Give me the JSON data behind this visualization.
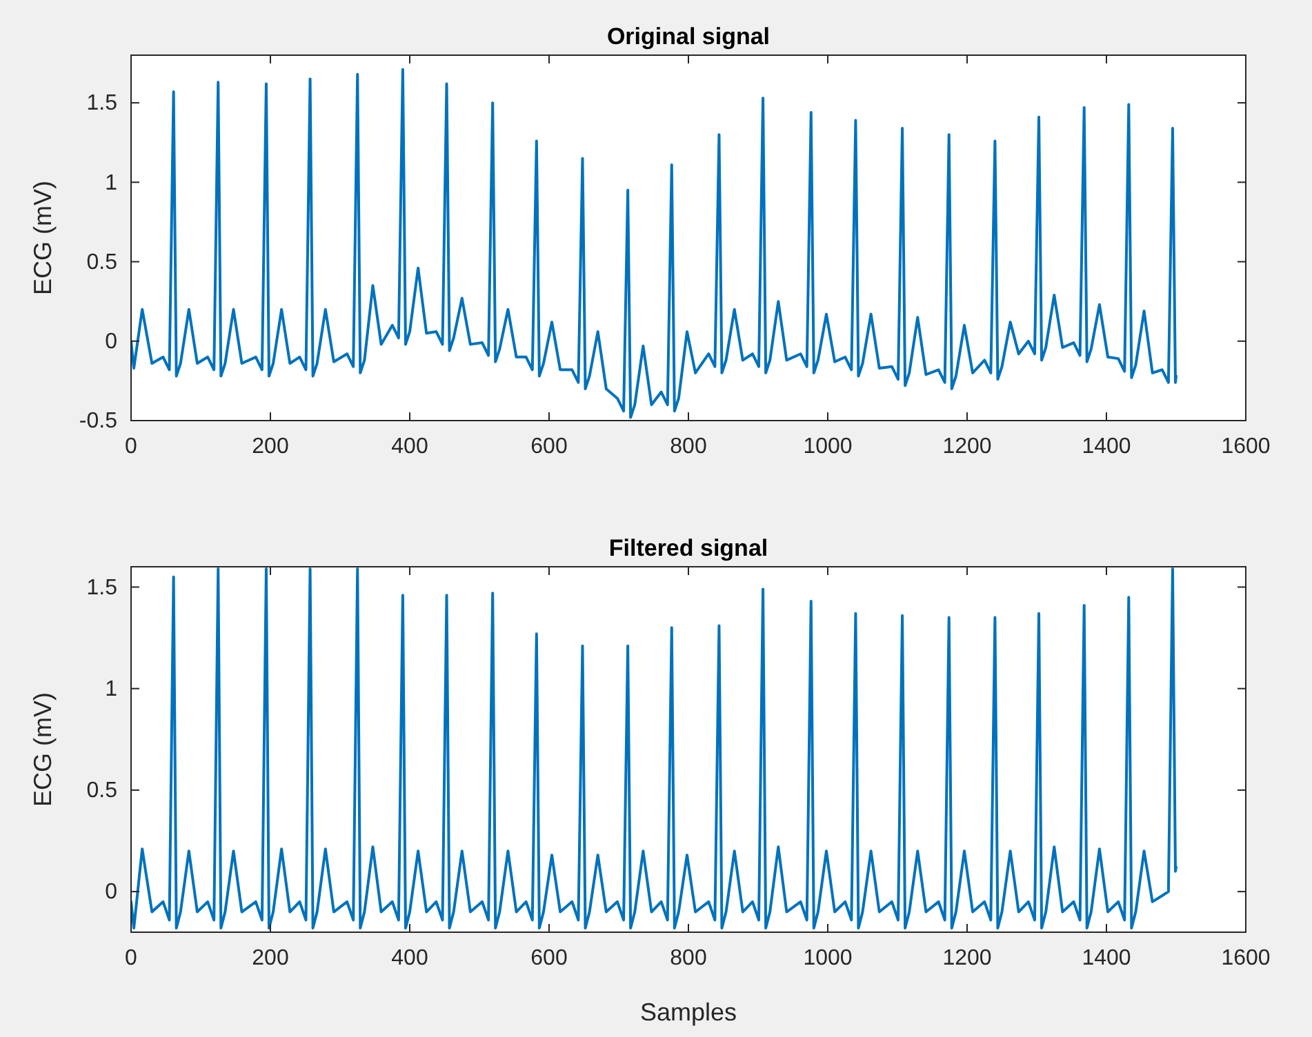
{
  "chart_data": [
    {
      "type": "line",
      "title": "Original signal",
      "ylabel": "ECG (mV)",
      "color": "#0072bd",
      "xlim": [
        0,
        1600
      ],
      "ylim": [
        -0.5,
        1.8
      ],
      "xticks": [
        0,
        200,
        400,
        600,
        800,
        1000,
        1200,
        1400,
        1600
      ],
      "yticks": [
        -0.5,
        0,
        0.5,
        1,
        1.5
      ],
      "x": [
        0,
        4,
        16,
        30,
        46,
        55,
        61,
        65,
        71,
        83,
        95,
        110,
        119,
        125,
        129,
        135,
        147,
        159,
        179,
        188,
        194,
        198,
        204,
        216,
        228,
        242,
        251,
        257,
        261,
        267,
        279,
        291,
        310,
        319,
        325,
        329,
        335,
        347,
        359,
        375,
        384,
        390,
        394,
        400,
        412,
        424,
        438,
        447,
        453,
        457,
        463,
        475,
        487,
        504,
        513,
        519,
        523,
        529,
        541,
        553,
        567,
        576,
        582,
        586,
        592,
        604,
        616,
        633,
        642,
        648,
        652,
        658,
        670,
        682,
        698,
        707,
        713,
        717,
        723,
        735,
        747,
        761,
        770,
        776,
        780,
        786,
        798,
        810,
        829,
        838,
        844,
        848,
        854,
        866,
        878,
        892,
        901,
        907,
        911,
        917,
        929,
        941,
        961,
        970,
        976,
        980,
        986,
        998,
        1010,
        1025,
        1034,
        1040,
        1044,
        1050,
        1062,
        1074,
        1092,
        1101,
        1107,
        1111,
        1117,
        1129,
        1141,
        1159,
        1168,
        1174,
        1178,
        1184,
        1196,
        1208,
        1225,
        1234,
        1240,
        1244,
        1250,
        1262,
        1274,
        1288,
        1297,
        1303,
        1307,
        1313,
        1325,
        1337,
        1353,
        1362,
        1368,
        1372,
        1378,
        1390,
        1402,
        1417,
        1426,
        1432,
        1436,
        1442,
        1454,
        1466,
        1480,
        1489,
        1495,
        1499,
        1500
      ],
      "values": [
        0.0,
        -0.17,
        0.2,
        -0.14,
        -0.1,
        -0.18,
        1.57,
        -0.22,
        -0.14,
        0.2,
        -0.14,
        -0.1,
        -0.18,
        1.63,
        -0.22,
        -0.14,
        0.2,
        -0.14,
        -0.1,
        -0.18,
        1.62,
        -0.22,
        -0.14,
        0.2,
        -0.14,
        -0.1,
        -0.18,
        1.65,
        -0.22,
        -0.14,
        0.2,
        -0.13,
        -0.08,
        -0.16,
        1.68,
        -0.2,
        -0.12,
        0.35,
        -0.02,
        0.1,
        0.02,
        1.71,
        -0.02,
        0.06,
        0.46,
        0.05,
        0.06,
        -0.02,
        1.62,
        -0.06,
        0.02,
        0.27,
        -0.02,
        -0.01,
        -0.09,
        1.5,
        -0.13,
        -0.05,
        0.2,
        -0.1,
        -0.1,
        -0.18,
        1.26,
        -0.22,
        -0.14,
        0.12,
        -0.18,
        -0.18,
        -0.26,
        1.15,
        -0.3,
        -0.22,
        0.06,
        -0.3,
        -0.36,
        -0.44,
        0.95,
        -0.48,
        -0.4,
        -0.03,
        -0.4,
        -0.32,
        -0.4,
        1.11,
        -0.44,
        -0.36,
        0.06,
        -0.2,
        -0.08,
        -0.16,
        1.3,
        -0.2,
        -0.12,
        0.2,
        -0.12,
        -0.08,
        -0.16,
        1.53,
        -0.2,
        -0.12,
        0.25,
        -0.12,
        -0.08,
        -0.16,
        1.44,
        -0.2,
        -0.12,
        0.17,
        -0.13,
        -0.1,
        -0.18,
        1.39,
        -0.22,
        -0.14,
        0.17,
        -0.17,
        -0.16,
        -0.24,
        1.34,
        -0.28,
        -0.2,
        0.15,
        -0.21,
        -0.18,
        -0.26,
        1.3,
        -0.3,
        -0.22,
        0.1,
        -0.2,
        -0.12,
        -0.2,
        1.26,
        -0.24,
        -0.16,
        0.12,
        -0.08,
        0.0,
        -0.08,
        1.41,
        -0.12,
        -0.04,
        0.29,
        -0.04,
        -0.01,
        -0.09,
        1.47,
        -0.13,
        -0.05,
        0.23,
        -0.1,
        -0.11,
        -0.19,
        1.49,
        -0.23,
        -0.15,
        0.19,
        -0.2,
        -0.18,
        -0.26,
        1.34,
        -0.26,
        -0.22
      ]
    },
    {
      "type": "line",
      "title": "Filtered signal",
      "ylabel": "ECG (mV)",
      "xlabel": "Samples",
      "color": "#0072bd",
      "xlim": [
        0,
        1600
      ],
      "ylim": [
        -0.2,
        1.6
      ],
      "xticks": [
        0,
        200,
        400,
        600,
        800,
        1000,
        1200,
        1400,
        1600
      ],
      "yticks": [
        0,
        0.5,
        1,
        1.5
      ],
      "x": [
        0,
        4,
        16,
        30,
        46,
        55,
        61,
        65,
        71,
        83,
        95,
        110,
        119,
        125,
        129,
        135,
        147,
        159,
        179,
        188,
        194,
        198,
        204,
        216,
        228,
        242,
        251,
        257,
        261,
        267,
        279,
        291,
        310,
        319,
        325,
        329,
        335,
        347,
        359,
        375,
        384,
        390,
        394,
        400,
        412,
        424,
        438,
        447,
        453,
        457,
        463,
        475,
        487,
        504,
        513,
        519,
        523,
        529,
        541,
        553,
        567,
        576,
        582,
        586,
        592,
        604,
        616,
        633,
        642,
        648,
        652,
        658,
        670,
        682,
        698,
        707,
        713,
        717,
        723,
        735,
        747,
        761,
        770,
        776,
        780,
        786,
        798,
        810,
        829,
        838,
        844,
        848,
        854,
        866,
        878,
        892,
        901,
        907,
        911,
        917,
        929,
        941,
        961,
        970,
        976,
        980,
        986,
        998,
        1010,
        1025,
        1034,
        1040,
        1044,
        1050,
        1062,
        1074,
        1092,
        1101,
        1107,
        1111,
        1117,
        1129,
        1141,
        1159,
        1168,
        1174,
        1178,
        1184,
        1196,
        1208,
        1225,
        1234,
        1240,
        1244,
        1250,
        1262,
        1274,
        1288,
        1297,
        1303,
        1307,
        1313,
        1325,
        1337,
        1353,
        1362,
        1368,
        1372,
        1378,
        1390,
        1402,
        1417,
        1426,
        1432,
        1436,
        1442,
        1454,
        1466,
        1480,
        1489,
        1495,
        1499,
        1500
      ],
      "values": [
        -0.05,
        -0.18,
        0.21,
        -0.1,
        -0.05,
        -0.14,
        1.55,
        -0.18,
        -0.1,
        0.2,
        -0.1,
        -0.05,
        -0.14,
        1.59,
        -0.18,
        -0.1,
        0.2,
        -0.1,
        -0.05,
        -0.14,
        1.59,
        -0.18,
        -0.1,
        0.21,
        -0.1,
        -0.05,
        -0.14,
        1.59,
        -0.18,
        -0.1,
        0.21,
        -0.1,
        -0.05,
        -0.14,
        1.59,
        -0.18,
        -0.1,
        0.22,
        -0.1,
        -0.05,
        -0.14,
        1.46,
        -0.18,
        -0.1,
        0.2,
        -0.1,
        -0.05,
        -0.14,
        1.46,
        -0.18,
        -0.1,
        0.2,
        -0.1,
        -0.05,
        -0.14,
        1.47,
        -0.18,
        -0.1,
        0.2,
        -0.1,
        -0.05,
        -0.14,
        1.27,
        -0.18,
        -0.1,
        0.18,
        -0.1,
        -0.05,
        -0.14,
        1.21,
        -0.18,
        -0.1,
        0.18,
        -0.1,
        -0.05,
        -0.14,
        1.21,
        -0.18,
        -0.1,
        0.2,
        -0.1,
        -0.05,
        -0.14,
        1.3,
        -0.18,
        -0.1,
        0.18,
        -0.1,
        -0.05,
        -0.14,
        1.31,
        -0.18,
        -0.1,
        0.2,
        -0.1,
        -0.05,
        -0.14,
        1.49,
        -0.18,
        -0.1,
        0.22,
        -0.1,
        -0.05,
        -0.14,
        1.43,
        -0.18,
        -0.1,
        0.2,
        -0.1,
        -0.05,
        -0.14,
        1.37,
        -0.18,
        -0.1,
        0.2,
        -0.1,
        -0.05,
        -0.14,
        1.36,
        -0.18,
        -0.1,
        0.2,
        -0.1,
        -0.05,
        -0.14,
        1.35,
        -0.18,
        -0.1,
        0.2,
        -0.1,
        -0.05,
        -0.14,
        1.35,
        -0.18,
        -0.1,
        0.2,
        -0.1,
        -0.05,
        -0.14,
        1.37,
        -0.18,
        -0.1,
        0.22,
        -0.1,
        -0.05,
        -0.14,
        1.41,
        -0.18,
        -0.1,
        0.21,
        -0.1,
        -0.05,
        -0.14,
        1.45,
        -0.18,
        -0.1,
        0.2,
        -0.05,
        -0.02,
        0.0,
        1.59,
        0.1,
        0.12
      ]
    }
  ]
}
